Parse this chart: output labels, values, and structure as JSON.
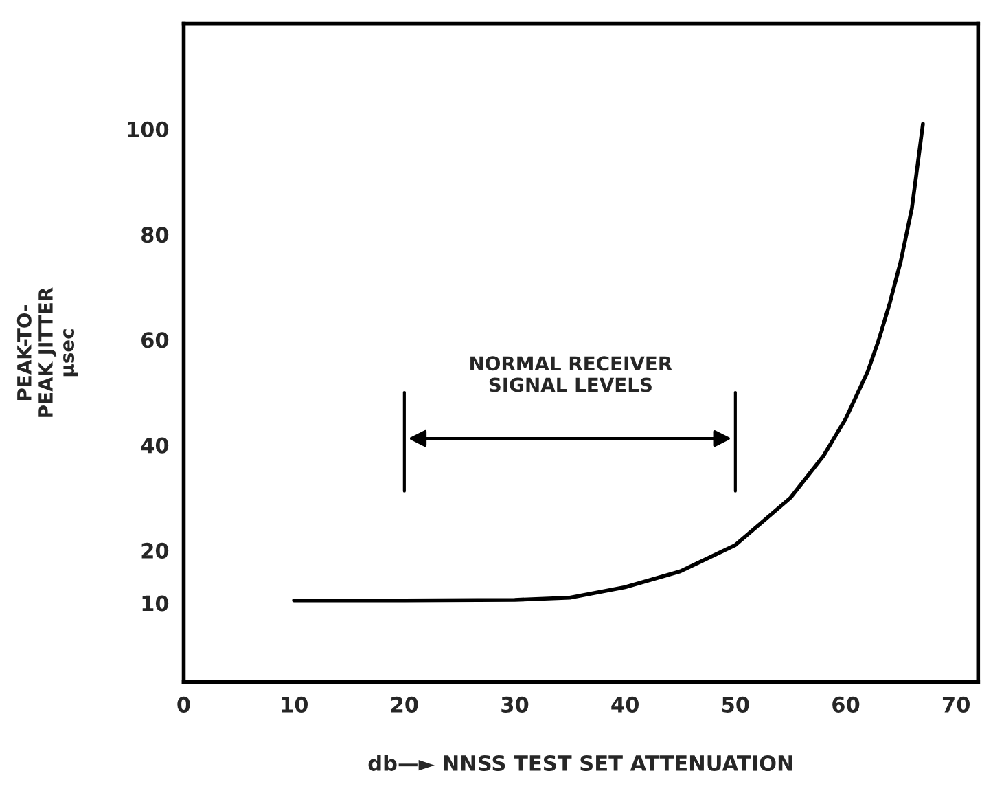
{
  "chart_data": {
    "type": "line",
    "xlabel": "db—► NNSS TEST SET ATTENUATION",
    "ylabel": "PEAK-TO-\nPEAK JITTER\nμsec",
    "x": [
      10,
      20,
      30,
      35,
      40,
      45,
      50,
      55,
      58,
      60,
      62,
      63,
      64,
      65,
      66,
      67
    ],
    "series": [
      {
        "color": "#000000",
        "values": [
          10.5,
          10.5,
          10.6,
          11,
          13,
          16,
          21,
          30,
          38,
          45,
          54,
          60,
          67,
          75,
          85,
          101
        ]
      }
    ],
    "xlim": [
      0,
      72
    ],
    "xticks": [
      0,
      10,
      20,
      30,
      40,
      50,
      60,
      70
    ],
    "ylim": [
      -5,
      120
    ],
    "yticks": [
      10,
      20,
      40,
      60,
      80,
      100
    ],
    "ref_lines": [
      {
        "axis": "x",
        "value": 20,
        "color": "#000000"
      },
      {
        "axis": "x",
        "value": 50,
        "color": "#000000"
      }
    ],
    "annotations": [
      "NORMAL RECEIVER\nSIGNAL LEVELS"
    ],
    "grid": false,
    "legend": false,
    "marker": "none",
    "line_style": "solid"
  }
}
